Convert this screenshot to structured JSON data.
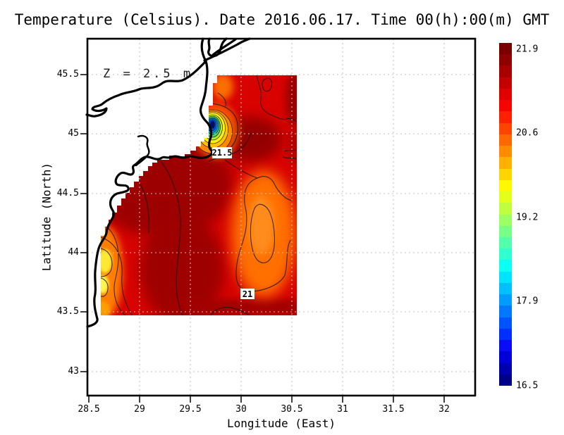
{
  "page": {
    "title": "Temperature (Celsius). Date 2016.06.17. Time 00(h):00(m) GMT"
  },
  "plot": {
    "annotation": "Z = 2.5 m",
    "x_axis": {
      "label": "Longitude (East)",
      "ticks": [
        "28.5",
        "29",
        "29.5",
        "30",
        "30.5",
        "31",
        "31.5",
        "32"
      ]
    },
    "y_axis": {
      "label": "Latitude (North)",
      "ticks": [
        "45.5",
        "45",
        "44.5",
        "44",
        "43.5",
        "43"
      ]
    },
    "contour_labels": {
      "a": "21.5",
      "b": "21"
    }
  },
  "colorbar": {
    "tick_labels": [
      "21.9",
      "20.6",
      "19.2",
      "17.9",
      "16.5"
    ],
    "min": 16.5,
    "max": 21.9,
    "colormap": "jet",
    "colors": [
      "#7a0000",
      "#8f0000",
      "#a80000",
      "#c40000",
      "#e00000",
      "#f60400",
      "#ff2000",
      "#ff4400",
      "#ff6800",
      "#ff8c00",
      "#ffb000",
      "#ffd400",
      "#fff800",
      "#e4ff1b",
      "#c0ff3f",
      "#9cff63",
      "#78ff87",
      "#54ffab",
      "#30ffcf",
      "#0cfff3",
      "#00e4ff",
      "#00c0ff",
      "#009cff",
      "#0078ff",
      "#0054ff",
      "#0030ff",
      "#0b0cf6",
      "#0000d8",
      "#0000b0",
      "#000089"
    ]
  },
  "field_colors": {
    "base_red": "#d80300",
    "dark_red": "#9c0000",
    "orange": "#ff7100",
    "yellow": "#ffe833",
    "cold_core_blue": "#001070"
  },
  "chart_data": {
    "type": "heatmap",
    "subtype": "filled-contour geographic map",
    "title": "Temperature (Celsius). Date 2016.06.17. Time 00(h):00(m) GMT",
    "variable": "sea water temperature",
    "units": "Celsius",
    "depth_annotation": "Z = 2.5 m",
    "date": "2016.06.17",
    "time": "00(h):00(m) GMT",
    "xlabel": "Longitude (East)",
    "ylabel": "Latitude (North)",
    "xlim": [
      28.5,
      32.3
    ],
    "ylim": [
      42.8,
      45.8
    ],
    "x_ticks": [
      28.5,
      29,
      29.5,
      30,
      30.5,
      31,
      31.5,
      32
    ],
    "y_ticks": [
      43,
      43.5,
      44,
      44.5,
      45,
      45.5
    ],
    "grid": "dotted 0.5-degree graticule",
    "data_extent": {
      "lon_min": 28.6,
      "lon_max": 30.55,
      "lat_min": 43.5,
      "lat_max": 45.5
    },
    "colorbar": {
      "position": "right",
      "min": 16.5,
      "max": 21.9,
      "ticks": [
        21.9,
        20.6,
        19.2,
        17.9,
        16.5
      ],
      "colormap": "jet"
    },
    "contour_labels": [
      {
        "value": 21.5,
        "lon": 29.81,
        "lat": 44.81
      },
      {
        "value": 21.0,
        "lon": 30.06,
        "lat": 43.65
      }
    ],
    "features": [
      {
        "name": "cold coastal upwelling spot near Danube mouth",
        "lon": 29.73,
        "lat": 45.07,
        "core_temp_c": 16.5
      },
      {
        "name": "warm dark-red pool",
        "lon_range": [
          28.7,
          29.8
        ],
        "lat_range": [
          44.2,
          45.0
        ],
        "temp_c": 21.8
      },
      {
        "name": "warm dark-red pool",
        "lon": 30.1,
        "lat": 44.95,
        "temp_c": 21.8
      },
      {
        "name": "cooler orange tongue inside 21C contour",
        "lon": 30.2,
        "lat": 44.2,
        "temp_c": 20.7
      },
      {
        "name": "coastal cool yellow patch",
        "lon": 28.68,
        "lat": 43.9,
        "temp_c": 19.8
      },
      {
        "name": "white land area with western Black Sea coastline, delta and lagoons"
      }
    ]
  }
}
